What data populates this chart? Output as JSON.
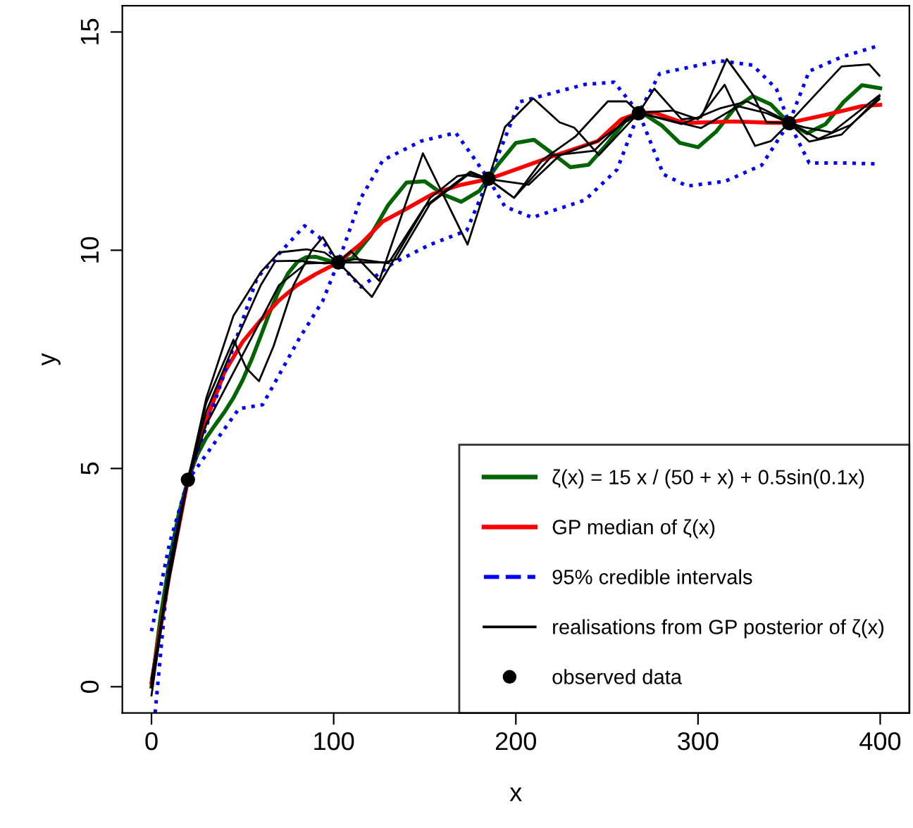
{
  "chart_data": {
    "type": "line",
    "xlabel": "x",
    "ylabel": "y",
    "xlim": [
      -16,
      416
    ],
    "ylim": [
      -0.6,
      15.6
    ],
    "xticks": [
      0,
      100,
      200,
      300,
      400
    ],
    "yticks": [
      0,
      5,
      10,
      15
    ],
    "grid": false,
    "legend": "bottom right",
    "series": [
      {
        "name": "ζ(x) = 15 x / (50 + x) + 0.5sin(0.1x)",
        "color": "#006400",
        "line_style": "solid",
        "x": [
          0,
          5,
          10,
          15,
          20,
          25,
          30,
          35,
          40,
          45,
          50,
          55,
          60,
          65,
          70,
          75,
          80,
          85,
          90,
          95,
          100,
          110,
          120,
          130,
          140,
          150,
          160,
          170,
          180,
          190,
          200,
          210,
          220,
          230,
          240,
          250,
          260,
          270,
          280,
          290,
          300,
          310,
          320,
          330,
          340,
          350,
          360,
          370,
          380,
          390,
          400
        ],
        "values": [
          0,
          1.6,
          2.92,
          3.96,
          4.74,
          5.3,
          5.7,
          6.0,
          6.29,
          6.62,
          7.02,
          7.5,
          8.04,
          8.59,
          9.08,
          9.47,
          9.73,
          9.84,
          9.85,
          9.79,
          9.73,
          9.81,
          10.32,
          11.04,
          11.55,
          11.58,
          11.28,
          11.11,
          11.36,
          11.95,
          12.46,
          12.53,
          12.22,
          11.9,
          11.96,
          12.43,
          12.96,
          13.13,
          12.86,
          12.46,
          12.36,
          12.72,
          13.25,
          13.53,
          13.34,
          12.91,
          12.68,
          12.89,
          13.4,
          13.78,
          13.71
        ]
      },
      {
        "name": "GP median of ζ(x)",
        "color": "#ff0000",
        "line_style": "solid",
        "x": [
          0,
          10,
          20,
          30,
          40,
          50,
          60,
          70,
          80,
          90,
          102.5,
          115,
          127,
          140,
          148,
          155,
          170,
          185,
          200,
          220,
          245,
          258,
          267.5,
          276,
          290,
          296,
          320,
          340,
          350,
          370,
          390,
          400
        ],
        "values": [
          0.1,
          2.6,
          4.74,
          6.1,
          7.2,
          7.9,
          8.4,
          8.85,
          9.2,
          9.45,
          9.72,
          10.15,
          10.66,
          10.95,
          11.14,
          11.3,
          11.5,
          11.63,
          11.85,
          12.15,
          12.5,
          13.0,
          13.15,
          13.15,
          12.95,
          12.92,
          12.95,
          12.92,
          12.92,
          13.1,
          13.3,
          13.33
        ]
      },
      {
        "name": "95% credible intervals",
        "color": "#0000ff",
        "line_style": "dotted",
        "x": [
          0,
          10,
          20,
          32.6,
          58,
          84,
          92,
          102.5,
          115,
          127,
          148,
          167,
          176,
          185,
          202,
          238,
          254,
          267.5,
          279,
          312,
          330,
          343,
          350,
          361,
          379,
          399.5
        ],
        "values": [
          1.27,
          3.3,
          4.73,
          6.27,
          9.37,
          10.56,
          10.3,
          9.72,
          11.2,
          12.06,
          12.5,
          12.69,
          12.17,
          11.63,
          13.4,
          13.8,
          13.85,
          13.15,
          14.05,
          14.34,
          14.24,
          13.7,
          12.92,
          14.1,
          14.43,
          14.69
        ]
      },
      {
        "color": "#0000ff",
        "line_style": "dotted",
        "x": [
          2,
          9.5,
          20,
          48,
          61,
          81,
          94,
          102.5,
          115,
          132.5,
          153,
          173,
          185,
          194,
          209,
          238,
          255.6,
          267.5,
          281,
          294,
          315,
          335,
          350,
          361,
          379,
          397
        ],
        "values": [
          -0.6,
          2.8,
          4.73,
          6.37,
          6.46,
          7.97,
          8.84,
          9.72,
          9.16,
          9.7,
          10.13,
          10.45,
          11.63,
          11.0,
          10.75,
          11.15,
          11.85,
          13.15,
          11.74,
          11.47,
          11.58,
          11.95,
          12.92,
          12.0,
          12.0,
          11.98
        ]
      },
      {
        "name": "realisations from GP posterior of ζ(x)",
        "color": "#000000",
        "line_style": "solid",
        "x": [
          0,
          10,
          20,
          30,
          45,
          60,
          70,
          85,
          95,
          102.5,
          109.5,
          125,
          149,
          173.5,
          185,
          194,
          209.5,
          224,
          232,
          245.6,
          267.5,
          276,
          291,
          301.7,
          315.8,
          330,
          337.6,
          350,
          378.8,
          394,
          399.6
        ],
        "values": [
          -0.2,
          2.7,
          4.73,
          6.6,
          8.5,
          9.5,
          9.95,
          10.02,
          9.95,
          9.72,
          9.98,
          9.3,
          12.22,
          10.13,
          11.63,
          12.82,
          13.48,
          12.93,
          12.81,
          12.18,
          13.15,
          13.7,
          13.0,
          13.04,
          14.38,
          13.57,
          12.93,
          12.92,
          14.21,
          14.26,
          14.0
        ]
      },
      {
        "color": "#000000",
        "line_style": "solid",
        "x": [
          0,
          10,
          20,
          30,
          45,
          52,
          59,
          67,
          78,
          88,
          94,
          102.5,
          121,
          153,
          168,
          176,
          185,
          199,
          214.6,
          232.6,
          250.5,
          260.8,
          267.5,
          286,
          300,
          314.6,
          322,
          331.3,
          340,
          350,
          361,
          378.8,
          399.6
        ],
        "values": [
          0.1,
          2.6,
          4.73,
          6.5,
          7.95,
          7.3,
          7.0,
          7.8,
          9.2,
          10.0,
          10.3,
          9.72,
          8.93,
          11.2,
          11.7,
          11.75,
          11.63,
          11.2,
          12.07,
          12.6,
          13.41,
          13.41,
          13.15,
          13.2,
          13.0,
          13.79,
          13.14,
          12.39,
          12.5,
          12.92,
          12.49,
          12.65,
          13.52
        ]
      },
      {
        "color": "#000000",
        "line_style": "solid",
        "x": [
          0,
          10,
          20,
          30,
          45,
          60,
          68,
          80,
          95,
          102.5,
          127.7,
          135,
          153,
          173.5,
          185,
          199,
          220,
          243,
          261,
          267.5,
          291,
          312,
          327,
          342.7,
          350,
          366,
          383.7,
          399.6
        ],
        "values": [
          0,
          2.8,
          4.73,
          6.3,
          7.8,
          9.2,
          9.75,
          9.76,
          9.7,
          9.72,
          9.72,
          9.8,
          11.07,
          11.72,
          11.63,
          11.2,
          12.17,
          12.28,
          13.03,
          13.15,
          12.89,
          13.25,
          13.41,
          13.09,
          12.92,
          12.55,
          12.87,
          13.46
        ]
      },
      {
        "color": "#000000",
        "line_style": "solid",
        "x": [
          0,
          10,
          20,
          30,
          40,
          55,
          70,
          85,
          102.5,
          112,
          130,
          150,
          175,
          185,
          207,
          224,
          245,
          267.5,
          301.7,
          322,
          337.6,
          350,
          358,
          373.5,
          399.6
        ],
        "values": [
          0.2,
          2.5,
          4.73,
          6.0,
          6.8,
          8.0,
          9.2,
          9.7,
          9.72,
          9.8,
          9.7,
          11.0,
          11.8,
          11.63,
          11.5,
          12.17,
          12.5,
          13.15,
          12.8,
          13.3,
          13.14,
          12.92,
          12.82,
          12.7,
          13.55
        ]
      },
      {
        "name": "observed data",
        "type": "scatter",
        "marker": "circle",
        "color": "#000000",
        "x": [
          20,
          102.5,
          185,
          267.5,
          350
        ],
        "values": [
          4.74,
          9.72,
          11.64,
          13.14,
          12.91
        ]
      }
    ]
  }
}
